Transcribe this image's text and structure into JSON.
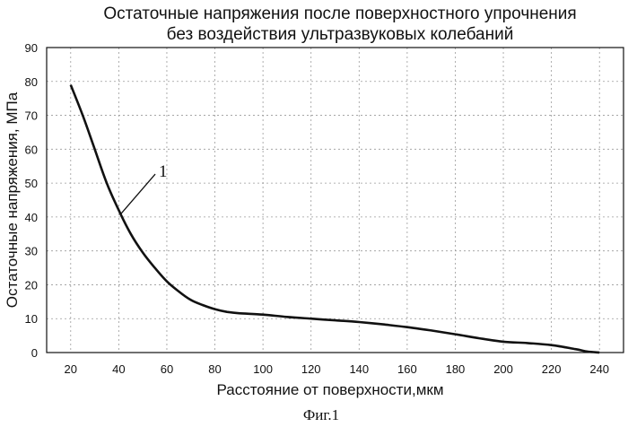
{
  "chart_data": {
    "type": "line",
    "title": "Остаточные напряжения после поверхностного упрочнения",
    "subtitle": "без воздействия ультразвуковых колебаний",
    "xlabel": "Расстояние от поверхности,мкм",
    "ylabel": "Остаточные напряжения, МПа",
    "caption": "Фиг.1",
    "xlim": [
      10,
      250
    ],
    "ylim": [
      0,
      90
    ],
    "xticks": [
      20,
      40,
      60,
      80,
      100,
      120,
      140,
      160,
      180,
      200,
      220,
      240
    ],
    "yticks": [
      0,
      10,
      20,
      30,
      40,
      50,
      60,
      70,
      80,
      90
    ],
    "grid": "dashed",
    "series": [
      {
        "name": "1",
        "color": "#111111",
        "x": [
          20,
          25,
          30,
          35,
          40,
          45,
          50,
          55,
          60,
          65,
          70,
          75,
          80,
          85,
          90,
          100,
          110,
          120,
          130,
          140,
          150,
          160,
          170,
          180,
          190,
          200,
          210,
          220,
          230,
          235,
          240
        ],
        "y": [
          79,
          70,
          60,
          50,
          42,
          35,
          29.5,
          25,
          21,
          18,
          15.5,
          14,
          12.8,
          12,
          11.6,
          11.2,
          10.5,
          10,
          9.5,
          9,
          8.3,
          7.5,
          6.5,
          5.4,
          4.2,
          3.2,
          2.8,
          2.2,
          1.0,
          0.3,
          0
        ]
      }
    ],
    "annotations": [
      {
        "text": "1",
        "target_x": 41,
        "target_y": 41
      }
    ]
  }
}
